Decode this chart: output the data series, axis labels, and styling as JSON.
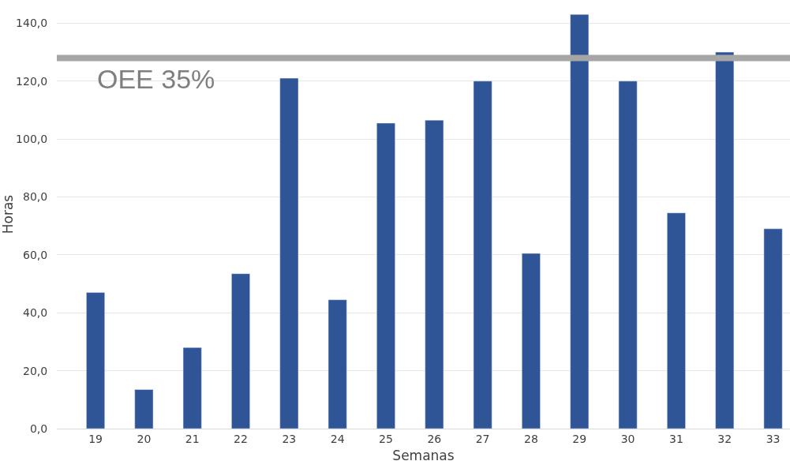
{
  "chart_data": {
    "type": "bar",
    "xlabel": "Semanas",
    "ylabel": "Horas",
    "categories": [
      "19",
      "20",
      "21",
      "22",
      "23",
      "24",
      "25",
      "26",
      "27",
      "28",
      "29",
      "30",
      "31",
      "32",
      "33"
    ],
    "values": [
      47,
      13.5,
      28,
      53.5,
      121,
      44.5,
      105.5,
      106.5,
      120,
      60.5,
      143,
      120,
      74.5,
      130,
      69
    ],
    "color": "#2f5597",
    "ylim": [
      0,
      148
    ],
    "yticks": [
      {
        "value": 0,
        "label": "0,0"
      },
      {
        "value": 20,
        "label": "20,0"
      },
      {
        "value": 40,
        "label": "40,0"
      },
      {
        "value": 60,
        "label": "60,0"
      },
      {
        "value": 80,
        "label": "80,0"
      },
      {
        "value": 100,
        "label": "100,0"
      },
      {
        "value": 120,
        "label": "120,0"
      },
      {
        "value": 140,
        "label": "140,0"
      }
    ],
    "ref_lines": [
      {
        "axis": "y",
        "value": 128,
        "label": "OEE 35%",
        "color": "#a6a6a6"
      }
    ],
    "grid": "y"
  }
}
